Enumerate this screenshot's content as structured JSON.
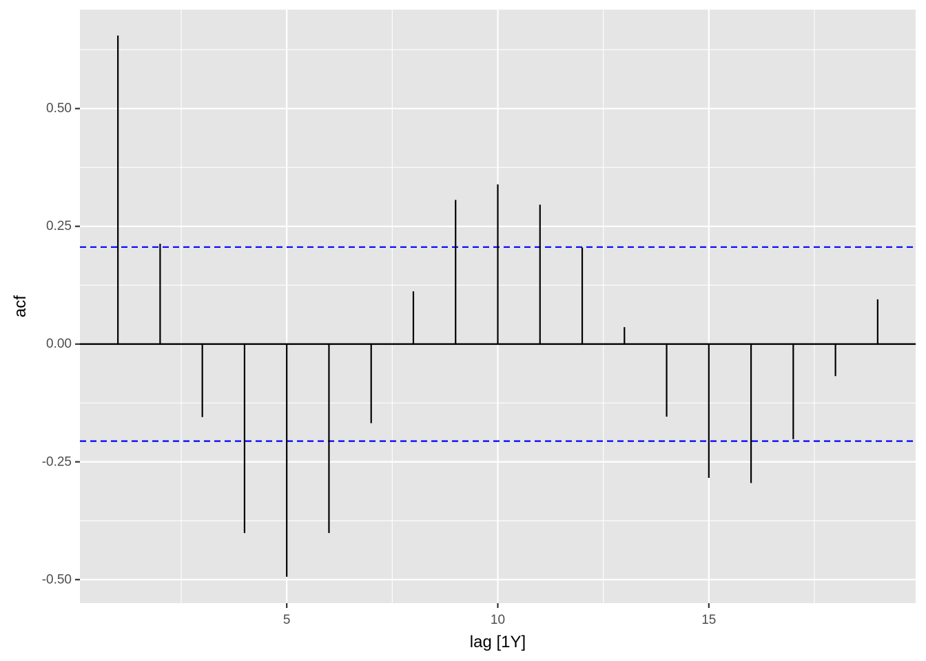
{
  "chart_data": {
    "type": "bar",
    "subtype": "acf-lollipop",
    "title": "",
    "xlabel": "lag [1Y]",
    "ylabel": "acf",
    "x": [
      1,
      2,
      3,
      4,
      5,
      6,
      7,
      8,
      9,
      10,
      11,
      12,
      13,
      14,
      15,
      16,
      17,
      18,
      19
    ],
    "values": [
      0.655,
      0.213,
      -0.155,
      -0.401,
      -0.494,
      -0.401,
      -0.168,
      0.112,
      0.306,
      0.339,
      0.296,
      0.205,
      0.036,
      -0.154,
      -0.284,
      -0.295,
      -0.202,
      -0.068,
      0.095
    ],
    "confidence_bounds": [
      0.206,
      -0.206
    ],
    "xlim": [
      0.1,
      19.9
    ],
    "ylim": [
      -0.55,
      0.71
    ],
    "x_ticks": [
      5,
      10,
      15
    ],
    "x_tick_labels": [
      "5",
      "10",
      "15"
    ],
    "y_ticks": [
      0.5,
      0.25,
      0.0,
      -0.25,
      -0.5
    ],
    "y_tick_labels": [
      "0.50",
      "0.25",
      "0.00",
      "-0.25",
      "-0.50"
    ],
    "grid": true,
    "colors": {
      "panel_background": "#E5E5E5",
      "grid": "#FFFFFF",
      "bars": "#000000",
      "confidence_lines": "#0000FF",
      "zero_line": "#000000"
    }
  }
}
